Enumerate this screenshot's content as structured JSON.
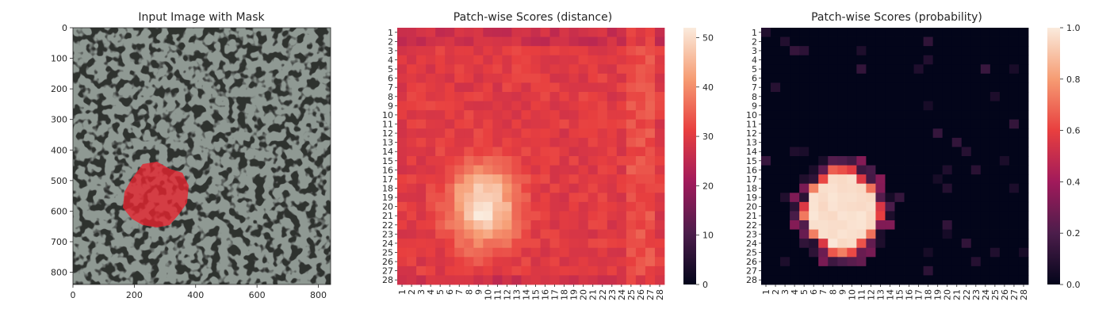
{
  "colors": {
    "mask": "#e8232e",
    "texture_light": "#8e9892",
    "texture_dark": "#30302f"
  },
  "chart_data": [
    {
      "type": "image",
      "title": "Input Image with Mask",
      "xticks": [
        "0",
        "200",
        "400",
        "600",
        "800"
      ],
      "yticks": [
        "0",
        "100",
        "200",
        "300",
        "400",
        "500",
        "600",
        "700",
        "800"
      ],
      "xlim": [
        0,
        840
      ],
      "ylim": [
        0,
        840
      ],
      "mask_region": {
        "center_x": 240,
        "center_y": 545,
        "approx_radius": 100
      }
    },
    {
      "type": "heatmap",
      "title": "Patch-wise Scores (distance)",
      "rows": 28,
      "cols": 28,
      "row_labels": [
        "1",
        "2",
        "3",
        "4",
        "5",
        "6",
        "7",
        "8",
        "9",
        "10",
        "11",
        "12",
        "13",
        "14",
        "15",
        "16",
        "17",
        "18",
        "19",
        "20",
        "21",
        "22",
        "23",
        "24",
        "25",
        "26",
        "27",
        "28"
      ],
      "col_labels": [
        "1",
        "2",
        "3",
        "4",
        "5",
        "6",
        "7",
        "8",
        "9",
        "10",
        "11",
        "12",
        "13",
        "14",
        "15",
        "16",
        "17",
        "18",
        "19",
        "20",
        "21",
        "22",
        "23",
        "24",
        "25",
        "26",
        "27",
        "28"
      ],
      "colorbar": {
        "min": 0,
        "max": 52,
        "ticks": [
          "0",
          "10",
          "20",
          "30",
          "40",
          "50"
        ]
      },
      "hotspot": {
        "center_row": 20,
        "center_col": 9.5,
        "peak": 52,
        "base": 30
      }
    },
    {
      "type": "heatmap",
      "title": "Patch-wise Scores (probability)",
      "rows": 28,
      "cols": 28,
      "row_labels": [
        "1",
        "2",
        "3",
        "4",
        "5",
        "6",
        "7",
        "8",
        "9",
        "10",
        "11",
        "12",
        "13",
        "14",
        "15",
        "16",
        "17",
        "18",
        "19",
        "20",
        "21",
        "22",
        "23",
        "24",
        "25",
        "26",
        "27",
        "28"
      ],
      "col_labels": [
        "1",
        "2",
        "3",
        "4",
        "5",
        "6",
        "7",
        "8",
        "9",
        "10",
        "11",
        "12",
        "13",
        "14",
        "15",
        "16",
        "17",
        "18",
        "19",
        "20",
        "21",
        "22",
        "23",
        "24",
        "25",
        "26",
        "27",
        "28"
      ],
      "colorbar": {
        "min": 0,
        "max": 1,
        "ticks": [
          "0.0",
          "0.2",
          "0.4",
          "0.6",
          "0.8",
          "1.0"
        ]
      },
      "hotspot": {
        "center_row": 20.5,
        "center_col": 9,
        "peak": 0.98,
        "base": 0.0
      }
    }
  ]
}
